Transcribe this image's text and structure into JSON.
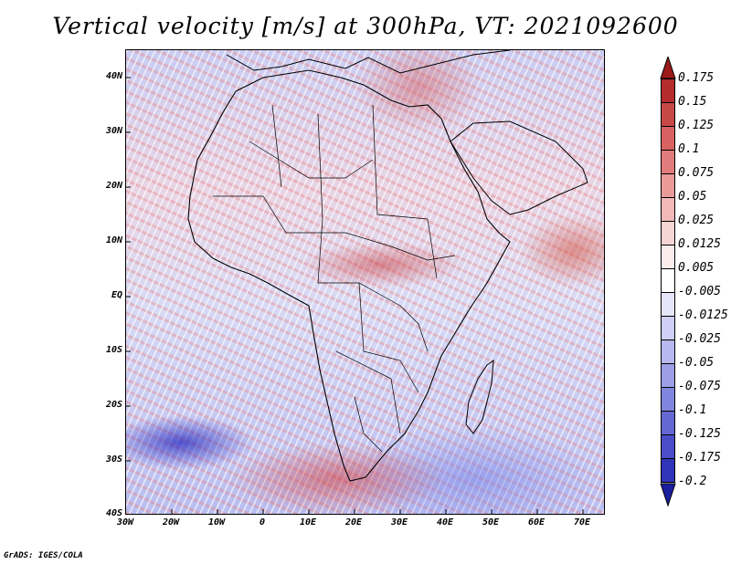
{
  "title": "Vertical velocity [m/s] at 300hPa, VT: 2021092600",
  "credit": "GrADS: IGES/COLA",
  "map": {
    "lat_labels": [
      "40N",
      "30N",
      "20N",
      "10N",
      "EQ",
      "10S",
      "20S",
      "30S",
      "40S"
    ],
    "lon_labels": [
      "30W",
      "20W",
      "10W",
      "0",
      "10E",
      "20E",
      "30E",
      "40E",
      "50E",
      "60E",
      "70E"
    ],
    "region": "Africa"
  },
  "colorbar": {
    "labels": [
      "0.175",
      "0.15",
      "0.125",
      "0.1",
      "0.075",
      "0.05",
      "0.025",
      "0.0125",
      "0.005",
      "-0.005",
      "-0.0125",
      "-0.025",
      "-0.05",
      "-0.075",
      "-0.1",
      "-0.125",
      "-0.175",
      "-0.2"
    ],
    "colors": [
      "#9c1a1a",
      "#b42c2c",
      "#c84848",
      "#d86262",
      "#e27c7c",
      "#eb9a9a",
      "#f2b8b8",
      "#f7d5d5",
      "#fbecec",
      "#ffffff",
      "#e6e6fb",
      "#cfd0f5",
      "#b6b8ee",
      "#9c9fe6",
      "#8185dd",
      "#6468d2",
      "#4a4ec6",
      "#3034b8",
      "#1c1f9e"
    ]
  }
}
